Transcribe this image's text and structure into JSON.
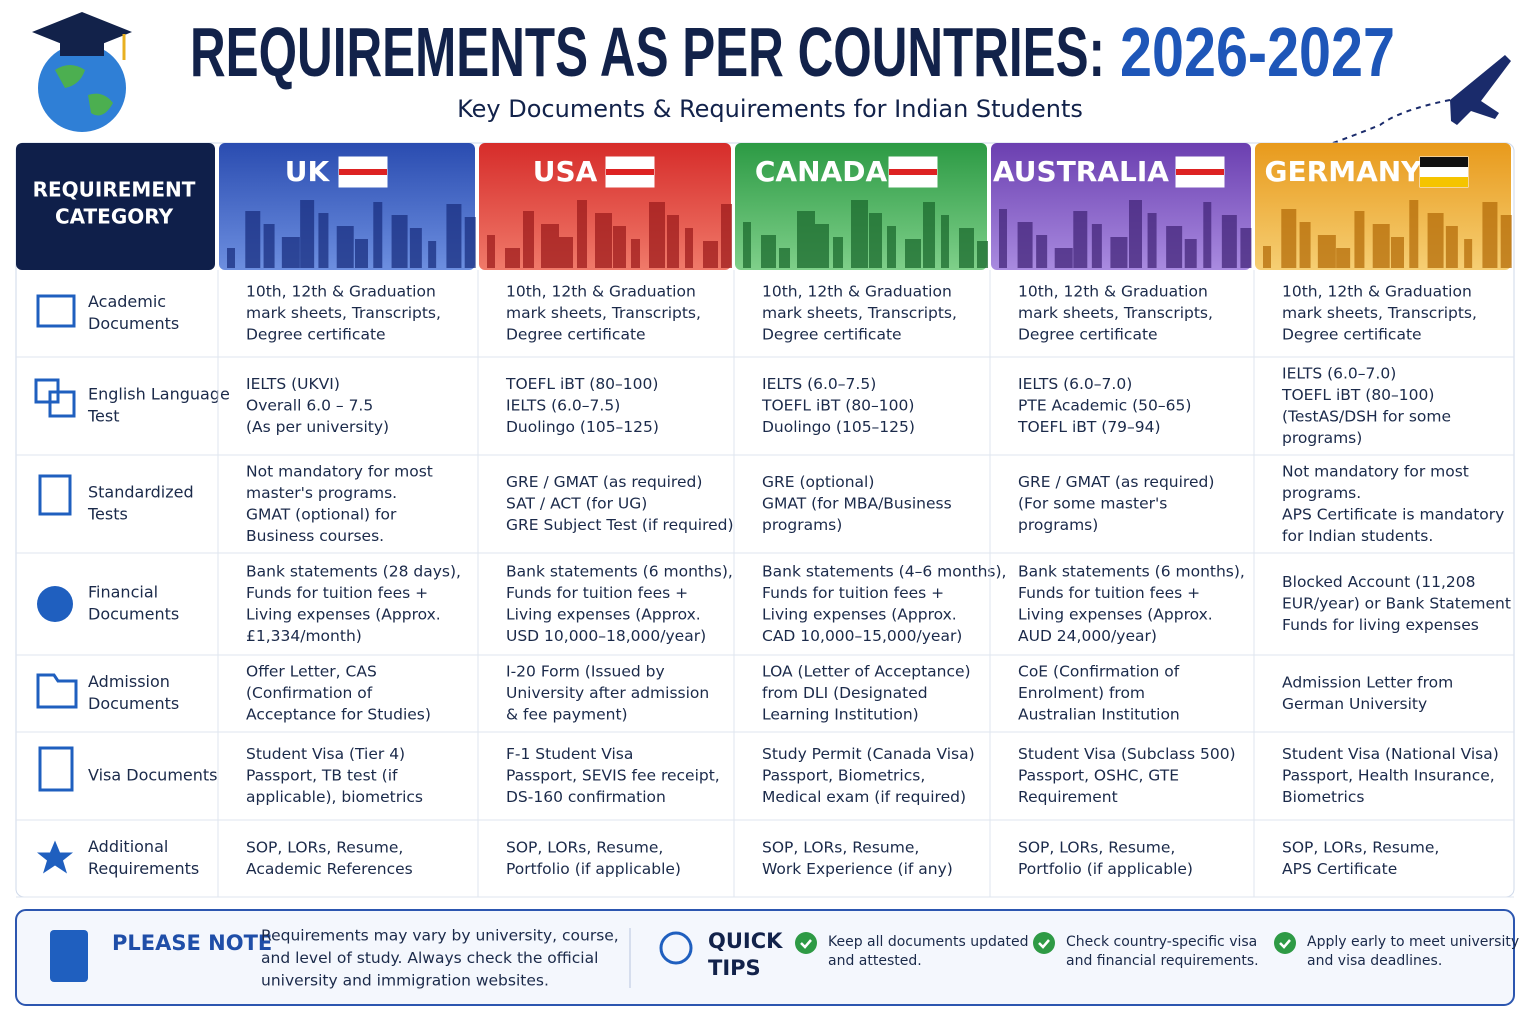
{
  "header": {
    "title": "REQUIREMENTS AS PER COUNTRIES:",
    "title_year": "2026-2027",
    "subtitle": "Key Documents & Requirements for Indian Students"
  },
  "table": {
    "category_header": [
      "REQUIREMENT",
      "CATEGORY"
    ],
    "countries": [
      "UK",
      "USA",
      "CANADA",
      "AUSTRALIA",
      "GERMANY"
    ],
    "rows": [
      {
        "category": [
          "Academic",
          "Documents"
        ],
        "cells": [
          [
            "10th, 12th & Graduation",
            "mark sheets, Transcripts,",
            "Degree certificate"
          ],
          [
            "10th, 12th & Graduation",
            "mark sheets, Transcripts,",
            "Degree certificate"
          ],
          [
            "10th, 12th & Graduation",
            "mark sheets, Transcripts,",
            "Degree certificate"
          ],
          [
            "10th, 12th & Graduation",
            "mark sheets, Transcripts,",
            "Degree certificate"
          ],
          [
            "10th, 12th & Graduation",
            "mark sheets, Transcripts,",
            "Degree certificate"
          ]
        ]
      },
      {
        "category": [
          "English Language",
          "Test"
        ],
        "cells": [
          [
            "IELTS (UKVI)",
            "Overall 6.0 – 7.5",
            "(As per university)"
          ],
          [
            "TOEFL iBT (80–100)",
            "IELTS (6.0–7.5)",
            "Duolingo (105–125)"
          ],
          [
            "IELTS (6.0–7.5)",
            "TOEFL iBT (80–100)",
            "Duolingo (105–125)"
          ],
          [
            "IELTS (6.0–7.0)",
            "PTE Academic (50–65)",
            "TOEFL iBT (79–94)"
          ],
          [
            "IELTS (6.0–7.0)",
            "TOEFL iBT (80–100)",
            "(TestAS/DSH for some",
            "programs)"
          ]
        ]
      },
      {
        "category": [
          "Standardized",
          "Tests"
        ],
        "cells": [
          [
            "Not mandatory for most",
            "master's programs.",
            "GMAT (optional) for",
            "Business courses."
          ],
          [
            "GRE / GMAT (as required)",
            "SAT / ACT (for UG)",
            "GRE Subject Test (if required)"
          ],
          [
            "GRE (optional)",
            "GMAT (for MBA/Business",
            "programs)"
          ],
          [
            "GRE / GMAT (as required)",
            "(For some master's",
            "programs)"
          ],
          [
            "Not mandatory for most",
            "programs.",
            "APS Certificate is mandatory",
            "for Indian students."
          ]
        ]
      },
      {
        "category": [
          "Financial",
          "Documents"
        ],
        "cells": [
          [
            "Bank statements (28 days),",
            "Funds for tuition fees +",
            "Living expenses (Approx.",
            "£1,334/month)"
          ],
          [
            "Bank statements (6 months),",
            "Funds for tuition fees +",
            "Living expenses (Approx.",
            "USD 10,000–18,000/year)"
          ],
          [
            "Bank statements (4–6 months),",
            "Funds for tuition fees +",
            "Living expenses (Approx.",
            "CAD 10,000–15,000/year)"
          ],
          [
            "Bank statements (6 months),",
            "Funds for tuition fees +",
            "Living expenses (Approx.",
            "AUD 24,000/year)"
          ],
          [
            "Blocked Account (11,208",
            "EUR/year) or Bank Statement",
            "Funds for living expenses"
          ]
        ]
      },
      {
        "category": [
          "Admission",
          "Documents"
        ],
        "cells": [
          [
            "Offer Letter, CAS",
            "(Confirmation of",
            "Acceptance for Studies)"
          ],
          [
            "I-20 Form (Issued by",
            "University after admission",
            "& fee payment)"
          ],
          [
            "LOA (Letter of Acceptance)",
            "from DLI (Designated",
            "Learning Institution)"
          ],
          [
            "CoE (Confirmation of",
            "Enrolment) from",
            "Australian Institution"
          ],
          [
            "Admission Letter from",
            "German University"
          ]
        ]
      },
      {
        "category": [
          "Visa Documents"
        ],
        "cells": [
          [
            "Student Visa (Tier 4)",
            "Passport, TB test (if",
            "applicable), biometrics"
          ],
          [
            "F-1 Student Visa",
            "Passport, SEVIS fee receipt,",
            "DS-160 confirmation"
          ],
          [
            "Study Permit (Canada Visa)",
            "Passport, Biometrics,",
            "Medical exam (if required)"
          ],
          [
            "Student Visa (Subclass 500)",
            "Passport, OSHC, GTE",
            "Requirement"
          ],
          [
            "Student Visa (National Visa)",
            "Passport, Health Insurance,",
            "Biometrics"
          ]
        ]
      },
      {
        "category": [
          "Additional",
          "Requirements"
        ],
        "cells": [
          [
            "SOP, LORs, Resume,",
            "Academic References"
          ],
          [
            "SOP, LORs, Resume,",
            "Portfolio (if applicable)"
          ],
          [
            "SOP, LORs, Resume,",
            "Work Experience (if any)"
          ],
          [
            "SOP, LORs, Resume,",
            "Portfolio (if applicable)"
          ],
          [
            "SOP, LORs, Resume,",
            "APS Certificate"
          ]
        ]
      }
    ]
  },
  "footer": {
    "note_title": "PLEASE NOTE",
    "note_text": [
      "Requirements may vary by university, course,",
      "and level of study. Always check the official",
      "university and immigration websites."
    ],
    "tips_title": [
      "QUICK",
      "TIPS"
    ],
    "tips": [
      [
        "Keep all documents updated",
        "and attested."
      ],
      [
        "Check country-specific visa",
        "and financial requirements."
      ],
      [
        "Apply early to meet university",
        "and visa deadlines."
      ]
    ]
  }
}
